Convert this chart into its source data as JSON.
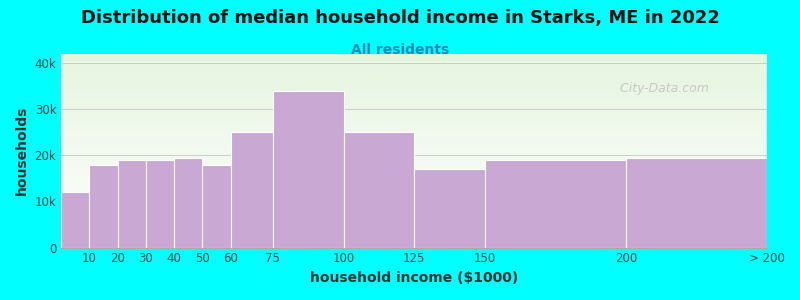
{
  "title": "Distribution of median household income in Starks, ME in 2022",
  "subtitle": "All residents",
  "xlabel": "household income ($1000)",
  "ylabel": "households",
  "background_color": "#00FFFF",
  "bar_color": "#C9A8D4",
  "bar_edge_color": "#ffffff",
  "bin_edges": [
    0,
    10,
    20,
    30,
    40,
    50,
    60,
    75,
    100,
    125,
    150,
    200,
    250
  ],
  "bin_labels": [
    "10",
    "20",
    "30",
    "40",
    "50",
    "60",
    "75",
    "100",
    "125",
    "150",
    "200",
    "> 200"
  ],
  "values": [
    12000,
    18000,
    19000,
    19000,
    19500,
    18000,
    25000,
    34000,
    25000,
    17000,
    19000,
    19500
  ],
  "ylim": [
    0,
    42000
  ],
  "yticks": [
    0,
    10000,
    20000,
    30000,
    40000
  ],
  "ytick_labels": [
    "0",
    "10k",
    "20k",
    "30k",
    "40k"
  ],
  "watermark": "  City-Data.com",
  "title_fontsize": 13,
  "subtitle_fontsize": 10,
  "axis_label_fontsize": 10,
  "tick_fontsize": 8.5
}
